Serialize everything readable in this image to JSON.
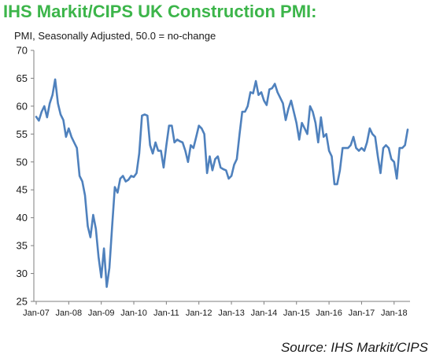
{
  "title": "IHS Markit/CIPS UK Construction PMI:",
  "subtitle": "PMI, Seasonally Adjusted, 50.0 = no-change",
  "source": "Source: IHS Markit/CIPS",
  "colors": {
    "title": "#3cb54a",
    "line": "#4f81bd",
    "axis": "#7f7f7f"
  },
  "chart_data": {
    "type": "line",
    "title": "IHS Markit/CIPS UK Construction PMI:",
    "subtitle": "PMI, Seasonally Adjusted, 50.0 = no-change",
    "xlabel": "",
    "ylabel": "",
    "ylim": [
      25,
      70
    ],
    "yticks": [
      "25",
      "30",
      "35",
      "40",
      "45",
      "50",
      "55",
      "60",
      "65",
      "70"
    ],
    "xticks": [
      "Jan-07",
      "Jan-08",
      "Jan-09",
      "Jan-10",
      "Jan-11",
      "Jan-12",
      "Jan-13",
      "Jan-14",
      "Jan-15",
      "Jan-16",
      "Jan-17",
      "Jan-18"
    ],
    "grid": false,
    "legend": "none",
    "x_start": "Jan-07",
    "x_end": "Jul-18",
    "series": [
      {
        "values": [
          58.1,
          57.4,
          59.0,
          60.0,
          58.0,
          60.5,
          62.0,
          64.8,
          60.5,
          58.5,
          57.5,
          54.5,
          56.0,
          54.5,
          53.5,
          52.5,
          47.5,
          46.5,
          44.0,
          38.5,
          36.5,
          40.5,
          38.0,
          33.0,
          29.3,
          34.5,
          27.6,
          31.0,
          38.5,
          45.5,
          44.5,
          47.0,
          47.5,
          46.5,
          46.8,
          47.5,
          47.3,
          48.0,
          51.5,
          58.3,
          58.5,
          58.3,
          53.0,
          51.5,
          53.5,
          52.0,
          52.0,
          49.0,
          53.0,
          56.5,
          56.5,
          53.5,
          54.0,
          53.7,
          53.5,
          52.0,
          50.0,
          53.0,
          52.5,
          54.5,
          56.5,
          56.0,
          55.0,
          48.0,
          51.0,
          48.5,
          50.5,
          51.0,
          49.0,
          48.7,
          48.5,
          47.0,
          47.5,
          49.5,
          50.5,
          55.0,
          59.0,
          59.0,
          60.0,
          62.5,
          62.3,
          64.5,
          62.0,
          62.5,
          61.0,
          60.2,
          63.0,
          63.2,
          64.0,
          62.5,
          61.5,
          60.5,
          57.5,
          59.5,
          61.0,
          59.0,
          57.0,
          54.0,
          57.0,
          56.0,
          55.0,
          60.0,
          59.0,
          57.0,
          53.5,
          58.0,
          54.5,
          55.0,
          52.0,
          51.0,
          46.0,
          46.0,
          48.5,
          52.5,
          52.5,
          52.5,
          53.0,
          54.5,
          52.5,
          52.0,
          52.5,
          52.0,
          53.5,
          56.0,
          55.0,
          54.5,
          51.0,
          48.0,
          52.5,
          53.0,
          52.5,
          50.5,
          50.0,
          47.0,
          52.5,
          52.5,
          53.0,
          55.8
        ]
      }
    ]
  }
}
